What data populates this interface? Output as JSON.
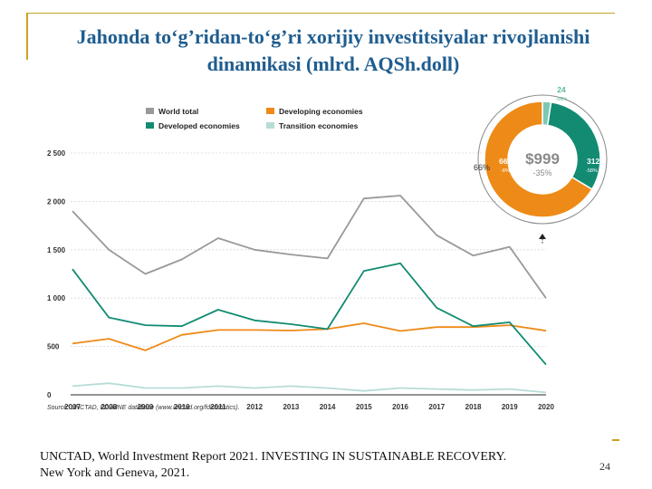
{
  "title": "Jahonda to‘g’ridan-to‘g’ri xorijiy investitsiyalar rivojlanishi dinamikasi (mlrd. AQSh.doll)",
  "citation": "UNCTAD, World Investment Report 2021. INVESTING IN SUSTAINABLE RECOVERY. New York and Geneva, 2021.",
  "page_number": "24",
  "chart_data": [
    {
      "type": "line",
      "x": [
        "2007",
        "2008",
        "2009",
        "2010",
        "2011",
        "2012",
        "2013",
        "2014",
        "2015",
        "2016",
        "2017",
        "2018",
        "2019",
        "2020"
      ],
      "ylim": [
        0,
        2500
      ],
      "y_ticks": [
        "0",
        "500",
        "1 000",
        "1 500",
        "2 000",
        "2 500"
      ],
      "grid": true,
      "legend_position": "top",
      "source_text": "Source:  UNCTAD, FDI/MNE database (www.unctad.org/fdistatistics).",
      "series": [
        {
          "name": "World total",
          "color": "#999999",
          "values": [
            1900,
            1500,
            1250,
            1400,
            1620,
            1500,
            1450,
            1410,
            2030,
            2060,
            1650,
            1440,
            1530,
            999
          ]
        },
        {
          "name": "Developing economies",
          "color": "#ee8a17",
          "values": [
            530,
            580,
            460,
            620,
            670,
            670,
            665,
            680,
            740,
            660,
            700,
            700,
            720,
            663
          ]
        },
        {
          "name": "Developed economies",
          "color": "#128b72",
          "values": [
            1300,
            800,
            720,
            710,
            880,
            770,
            730,
            680,
            1280,
            1360,
            900,
            710,
            750,
            312
          ]
        },
        {
          "name": "Transition economies",
          "color": "#b7ddd6",
          "values": [
            90,
            120,
            70,
            70,
            90,
            70,
            90,
            70,
            40,
            70,
            60,
            50,
            60,
            24
          ]
        }
      ]
    },
    {
      "type": "pie",
      "center_label": "$999",
      "center_sublabel": "-35%",
      "side_label": "66%",
      "slices": [
        {
          "name": "Developing economies",
          "value": 663,
          "change": "-8%",
          "color": "#ee8a17"
        },
        {
          "name": "Developed economies",
          "value": 312,
          "change": "-58%",
          "color": "#128b72"
        },
        {
          "name": "Transition economies",
          "value": 24,
          "change": "-58%",
          "color": "#7cc8b3"
        }
      ]
    }
  ]
}
